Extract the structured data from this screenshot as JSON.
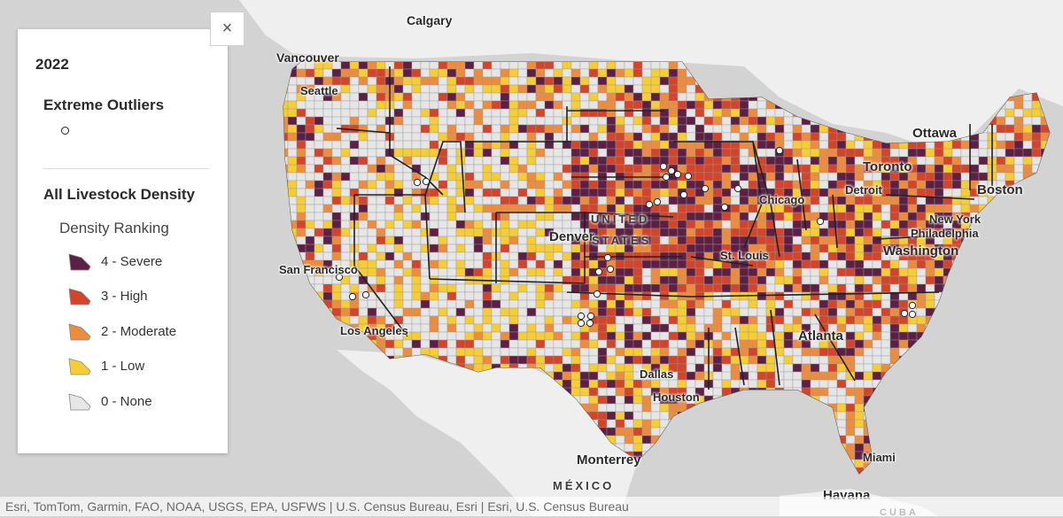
{
  "legend": {
    "year": "2022",
    "outliers_title": "Extreme Outliers",
    "density_title": "All Livestock Density",
    "density_subtitle": "Density Ranking",
    "items": [
      {
        "label": "4 - Severe",
        "color": "#5e1f45"
      },
      {
        "label": "3 - High",
        "color": "#d4442b"
      },
      {
        "label": "2 - Moderate",
        "color": "#ee8c3e"
      },
      {
        "label": "1 - Low",
        "color": "#f7cd35"
      },
      {
        "label": "0 - None",
        "color": "#e6e6e6"
      }
    ]
  },
  "close_label": "×",
  "attribution": "Esri, TomTom, Garmin, FAO, NOAA, USGS, EPA, USFWS | U.S. Census Bureau, Esri | Esri, U.S. Census Bureau",
  "cities": {
    "calgary": "Calgary",
    "vancouver": "Vancouver",
    "seattle": "Seattle",
    "ottawa": "Ottawa",
    "toronto": "Toronto",
    "boston": "Boston",
    "detroit": "Detroit",
    "chicago": "Chicago",
    "new_york": "New York",
    "philadelphia": "Philadelphia",
    "washington": "Washington",
    "denver": "Denver",
    "st_louis": "St. Louis",
    "san_francisco": "San Francisco",
    "los_angeles": "Los Angeles",
    "dallas": "Dallas",
    "atlanta": "Atlanta",
    "houston": "Houston",
    "miami": "Miami",
    "monterrey": "Monterrey",
    "havana": "Havana"
  },
  "countries": {
    "united": "UNITED",
    "states": "STATES",
    "mexico": "MÉXICO",
    "cuba": "CUBA"
  },
  "map_colors": {
    "land": "#f4f4f4",
    "water": "#d3d3d3",
    "severe": "#5e1f45",
    "high": "#d4442b",
    "moderate": "#ee8c3e",
    "low": "#f7cd35",
    "none": "#e6e6e6"
  }
}
